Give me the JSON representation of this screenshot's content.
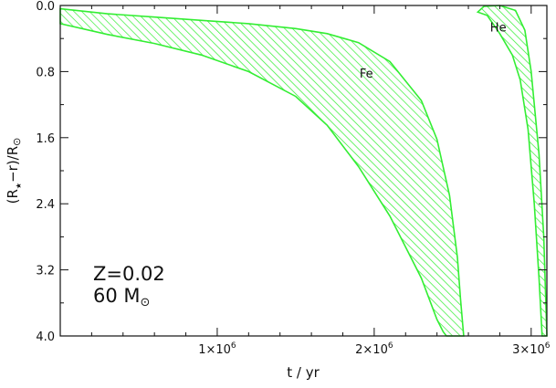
{
  "chart_data": {
    "type": "area",
    "xlabel": "t / yr",
    "ylabel": "(R★−r)/R⊙",
    "ylabel_parts": {
      "open": "(R",
      "star_sub": "★",
      "rest": "−r)/R",
      "sun": "⊙"
    },
    "xlim": [
      0,
      3100000
    ],
    "ylim": [
      4.0,
      0.0
    ],
    "y_inverted": true,
    "xticks": [
      {
        "value": 1000000,
        "mantissa": "1×10",
        "exp": "6"
      },
      {
        "value": 2000000,
        "mantissa": "2×10",
        "exp": "6"
      },
      {
        "value": 3000000,
        "mantissa": "3×10",
        "exp": "6"
      }
    ],
    "yticks": [
      {
        "value": 0.0,
        "label": "0.0"
      },
      {
        "value": 0.8,
        "label": "0.8"
      },
      {
        "value": 1.6,
        "label": "1.6"
      },
      {
        "value": 2.4,
        "label": "2.4"
      },
      {
        "value": 3.2,
        "label": "3.2"
      },
      {
        "value": 4.0,
        "label": "4.0"
      }
    ],
    "fill_color": "#33ee33",
    "regions": [
      {
        "name": "Fe",
        "label_pos": {
          "x": 1950000,
          "y": 0.82
        },
        "upper": {
          "x": [
            0,
            300000,
            600000,
            900000,
            1200000,
            1500000,
            1700000,
            1900000,
            2100000,
            2300000,
            2400000,
            2480000,
            2530000,
            2550000,
            2570000
          ],
          "y": [
            0.04,
            0.1,
            0.14,
            0.18,
            0.22,
            0.28,
            0.34,
            0.45,
            0.68,
            1.15,
            1.62,
            2.3,
            3.05,
            3.55,
            4.0
          ]
        },
        "lower": {
          "x": [
            0,
            300000,
            600000,
            900000,
            1200000,
            1500000,
            1700000,
            1900000,
            2100000,
            2300000,
            2400000,
            2440000,
            2460000
          ],
          "y": [
            0.22,
            0.35,
            0.46,
            0.6,
            0.8,
            1.1,
            1.45,
            1.95,
            2.55,
            3.3,
            3.8,
            3.95,
            4.0
          ]
        }
      },
      {
        "name": "He",
        "label_pos": {
          "x": 2790000,
          "y": 0.26
        },
        "outer": {
          "x": [
            2660000,
            2700000,
            2800000,
            2900000,
            2960000,
            3000000,
            3050000,
            3080000,
            3100000
          ],
          "y": [
            0.08,
            0.01,
            0.0,
            0.06,
            0.3,
            0.8,
            1.8,
            2.8,
            4.0
          ]
        },
        "inner": {
          "x": [
            2660000,
            2720000,
            2800000,
            2880000,
            2930000,
            2980000,
            3020000,
            3050000,
            3070000
          ],
          "y": [
            0.08,
            0.12,
            0.34,
            0.6,
            0.9,
            1.5,
            2.4,
            3.3,
            4.0
          ]
        }
      }
    ],
    "annotation": {
      "line1": "Z=0.02",
      "line2_text": "60 M",
      "line2_sub": "⊙"
    }
  }
}
